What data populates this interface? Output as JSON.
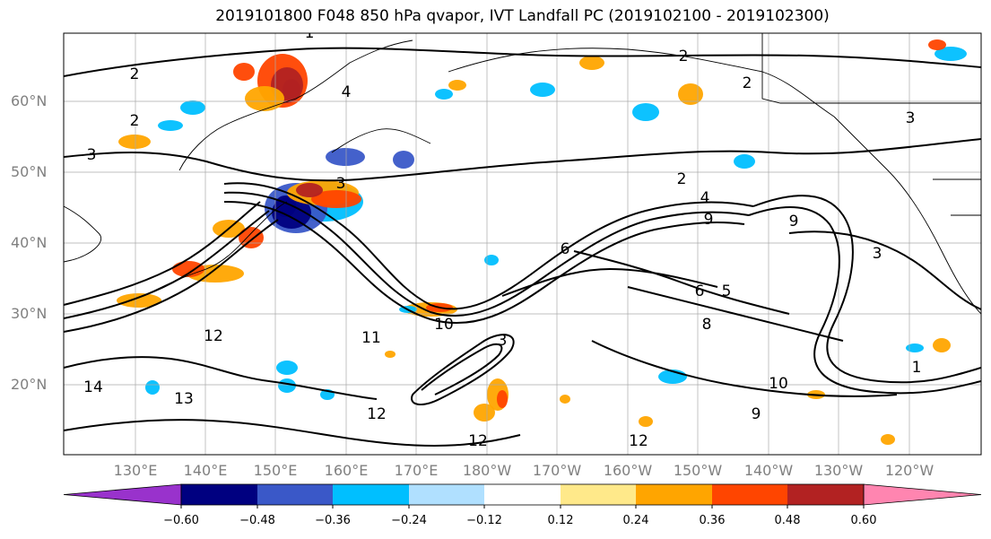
{
  "title": "2019101800 F048 850 hPa qvapor, IVT Landfall PC (2019102100 - 2019102300)",
  "lat_labels": [
    "60°N",
    "50°N",
    "40°N",
    "30°N",
    "20°N"
  ],
  "lon_labels": [
    "130°E",
    "140°E",
    "150°E",
    "160°E",
    "170°E",
    "180°W",
    "170°W",
    "160°W",
    "150°W",
    "140°W",
    "130°W",
    "120°W"
  ],
  "colorbar": {
    "colors": [
      "#9932cc",
      "#000080",
      "#3a58c8",
      "#00bfff",
      "#b0e0ff",
      "#ffffff",
      "#ffe98a",
      "#ffa500",
      "#ff4500",
      "#b22222",
      "#ff85b0"
    ],
    "tick_labels": [
      "−0.60",
      "−0.48",
      "−0.36",
      "−0.24",
      "−0.12",
      "0.12",
      "0.24",
      "0.36",
      "0.48",
      "0.60"
    ]
  },
  "contour_labels": [
    "1",
    "2",
    "2",
    "2",
    "3",
    "3",
    "4",
    "2",
    "3",
    "4",
    "9",
    "9",
    "6",
    "6",
    "5",
    "3",
    "12",
    "11",
    "10",
    "9",
    "12",
    "14",
    "13",
    "12",
    "12",
    "10",
    "1",
    "8",
    "2",
    "3"
  ]
}
